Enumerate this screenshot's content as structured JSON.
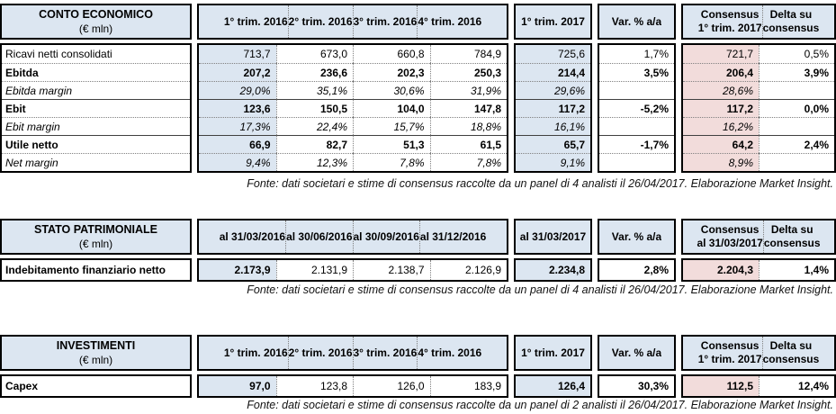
{
  "colors": {
    "header_bg": "#dce6f1",
    "current_period_bg": "#dce6f1",
    "consensus_bg": "#f2dcdb",
    "border": "#000000"
  },
  "tables": [
    {
      "title": "CONTO ECONOMICO",
      "subtitle": "(€ mln)",
      "columns": [
        "1° trim. 2016",
        "2° trim. 2016",
        "3° trim. 2016",
        "4° trim. 2016"
      ],
      "current_column": "1° trim. 2017",
      "var_column": "Var. % a/a",
      "consensus_l1": "Consensus",
      "consensus_l2": "1° trim. 2017",
      "delta_l1": "Delta su",
      "delta_l2": "consensus",
      "rows": [
        {
          "label": "Ricavi netti consolidati",
          "values": [
            "713,7",
            "673,0",
            "660,8",
            "784,9",
            "725,6",
            "1,7%",
            "721,7",
            "0,5%"
          ]
        },
        {
          "label": "Ebitda",
          "values": [
            "207,2",
            "236,6",
            "202,3",
            "250,3",
            "214,4",
            "3,5%",
            "206,4",
            "3,9%"
          ]
        },
        {
          "label": "Ebitda margin",
          "values": [
            "29,0%",
            "35,1%",
            "30,6%",
            "31,9%",
            "29,6%",
            "",
            "28,6%",
            ""
          ]
        },
        {
          "label": "Ebit",
          "values": [
            "123,6",
            "150,5",
            "104,0",
            "147,8",
            "117,2",
            "-5,2%",
            "117,2",
            "0,0%"
          ]
        },
        {
          "label": "Ebit margin",
          "values": [
            "17,3%",
            "22,4%",
            "15,7%",
            "18,8%",
            "16,1%",
            "",
            "16,2%",
            ""
          ]
        },
        {
          "label": "Utile netto",
          "values": [
            "66,9",
            "82,7",
            "51,3",
            "61,5",
            "65,7",
            "-1,7%",
            "64,2",
            "2,4%"
          ]
        },
        {
          "label": "Net margin",
          "values": [
            "9,4%",
            "12,3%",
            "7,8%",
            "7,8%",
            "9,1%",
            "",
            "8,9%",
            ""
          ]
        }
      ],
      "footnote": "Fonte: dati societari e stime di consensus raccolte da un panel di 4 analisti il 26/04/2017. Elaborazione Market Insight."
    },
    {
      "title": "STATO PATRIMONIALE",
      "subtitle": "(€ mln)",
      "columns": [
        "al 31/03/2016",
        "al 30/06/2016",
        "al 30/09/2016",
        "al 31/12/2016"
      ],
      "current_column": "al 31/03/2017",
      "var_column": "Var. % a/a",
      "consensus_l1": "Consensus",
      "consensus_l2": "al 31/03/2017",
      "delta_l1": "Delta su",
      "delta_l2": "consensus",
      "rows": [
        {
          "label": "Indebitamento finanziario netto",
          "values": [
            "2.173,9",
            "2.131,9",
            "2.138,7",
            "2.126,9",
            "2.234,8",
            "2,8%",
            "2.204,3",
            "1,4%"
          ]
        }
      ],
      "footnote": "Fonte: dati societari e stime di consensus raccolte da un panel di 4 analisti il 26/04/2017. Elaborazione Market Insight."
    },
    {
      "title": "INVESTIMENTI",
      "subtitle": "(€ mln)",
      "columns": [
        "1° trim. 2016",
        "2° trim. 2016",
        "3° trim. 2016",
        "4° trim. 2016"
      ],
      "current_column": "1° trim. 2017",
      "var_column": "Var. % a/a",
      "consensus_l1": "Consensus",
      "consensus_l2": "1° trim. 2017",
      "delta_l1": "Delta su",
      "delta_l2": "consensus",
      "rows": [
        {
          "label": "Capex",
          "values": [
            "97,0",
            "123,8",
            "126,0",
            "183,9",
            "126,4",
            "30,3%",
            "112,5",
            "12,4%"
          ]
        }
      ],
      "footnote": "Fonte: dati societari e stime di consensus raccolte da un panel di 2 analisti il 26/04/2017. Elaborazione Market Insight."
    }
  ]
}
